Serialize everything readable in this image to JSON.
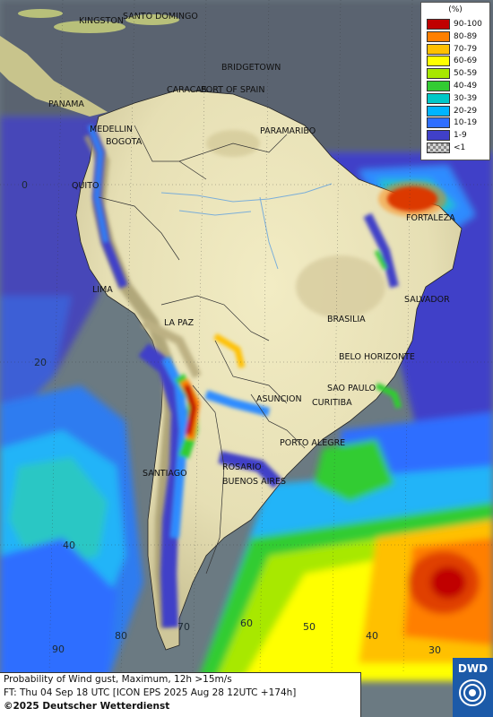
{
  "map": {
    "title": "Probability of Wind gust, Maximum, 12h >15m/s",
    "forecast_time": "FT: Thu 04 Sep 18 UTC [ICON EPS 2025 Aug 28 12UTC +174h]",
    "copyright": "©2025 Deutscher Wetterdienst",
    "logo_text": "DWD"
  },
  "legend": {
    "title": "(%)",
    "items": [
      {
        "label": "90-100",
        "color": "#c00000"
      },
      {
        "label": "80-89",
        "color": "#ff7f00"
      },
      {
        "label": "70-79",
        "color": "#ffc000"
      },
      {
        "label": "60-69",
        "color": "#ffff00"
      },
      {
        "label": "50-59",
        "color": "#a8e800"
      },
      {
        "label": "40-49",
        "color": "#33cc33"
      },
      {
        "label": "30-39",
        "color": "#00c8c8"
      },
      {
        "label": "20-29",
        "color": "#00b4ff"
      },
      {
        "label": "10-19",
        "color": "#2e6eff"
      },
      {
        "label": "1-9",
        "color": "#4040c8"
      },
      {
        "label": "<1",
        "color": "checker"
      }
    ]
  },
  "cities": [
    {
      "name": "KINGSTON"
    },
    {
      "name": "SANTO DOMINGO"
    },
    {
      "name": "BRIDGETOWN"
    },
    {
      "name": "CARACAS"
    },
    {
      "name": "PORT OF SPAIN"
    },
    {
      "name": "PANAMA"
    },
    {
      "name": "MEDELLIN"
    },
    {
      "name": "BOGOTA"
    },
    {
      "name": "PARAMARIBO"
    },
    {
      "name": "QUITO"
    },
    {
      "name": "FORTALEZA"
    },
    {
      "name": "LIMA"
    },
    {
      "name": "SALVADOR"
    },
    {
      "name": "BRASILIA"
    },
    {
      "name": "LA PAZ"
    },
    {
      "name": "BELO HORIZONTE"
    },
    {
      "name": "SAO PAULO"
    },
    {
      "name": "ASUNCION"
    },
    {
      "name": "CURITIBA"
    },
    {
      "name": "PORTO ALEGRE"
    },
    {
      "name": "ROSARIO"
    },
    {
      "name": "SANTIAGO"
    },
    {
      "name": "BUENOS AIRES"
    }
  ],
  "grid_labels": {
    "lat": [
      "0",
      "20",
      "40"
    ],
    "lon": [
      "90",
      "80",
      "70",
      "60",
      "50",
      "40",
      "30"
    ]
  }
}
